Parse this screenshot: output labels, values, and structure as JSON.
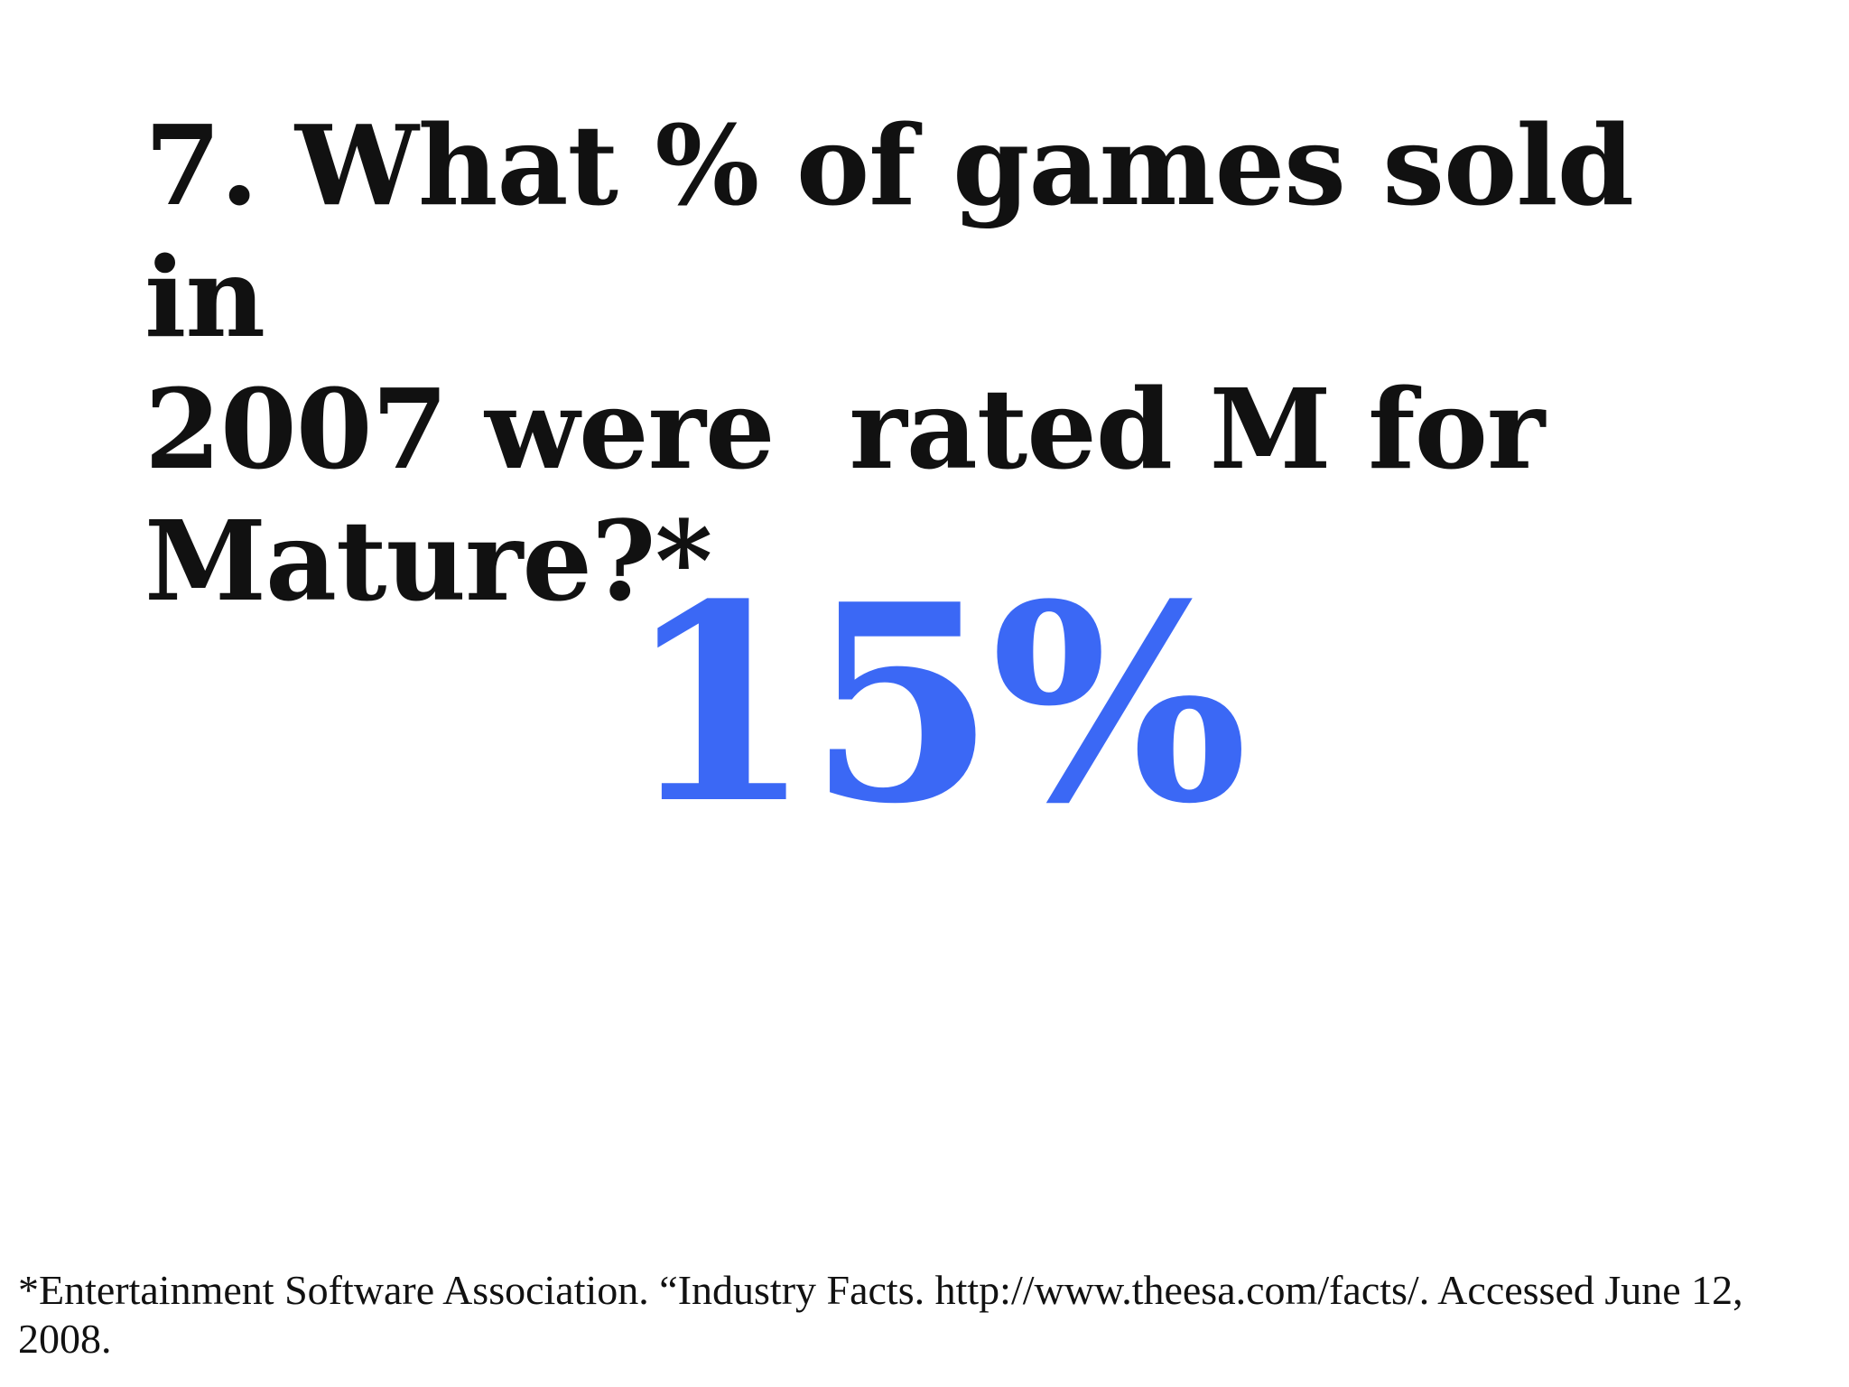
{
  "slide": {
    "question": "7. What % of games sold in\n2007 were  rated M for\nMature?*",
    "answer": "15%",
    "footnote": "*Entertainment Software Association. “Industry Facts. http://www.theesa.com/facts/. Accessed June 12, 2008."
  },
  "colors": {
    "accent": "#3b68f5",
    "text": "#111111",
    "background": "#ffffff"
  }
}
